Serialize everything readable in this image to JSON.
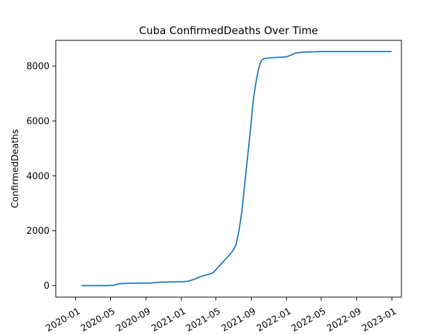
{
  "chart_data": {
    "type": "line",
    "title": "Cuba  ConfirmedDeaths Over Time",
    "xlabel": "",
    "ylabel": "ConfirmedDeaths",
    "x_ticks": [
      "2020-01",
      "2020-05",
      "2020-09",
      "2021-01",
      "2021-05",
      "2021-09",
      "2022-01",
      "2022-05",
      "2022-09",
      "2023-01"
    ],
    "y_ticks": [
      0,
      2000,
      4000,
      6000,
      8000
    ],
    "xlim": [
      "2019-10-24",
      "2023-02-03"
    ],
    "ylim": [
      -420,
      8940
    ],
    "grid": false,
    "color": "#1f77b4",
    "series": [
      {
        "x": [
          "2020-01-22",
          "2020-03-11",
          "2020-04-01",
          "2020-04-20",
          "2020-05-10",
          "2020-06-01",
          "2020-07-01",
          "2020-08-01",
          "2020-09-01",
          "2020-09-20",
          "2020-10-15",
          "2020-11-15",
          "2020-12-15",
          "2021-01-10",
          "2021-01-25",
          "2021-02-15",
          "2021-03-10",
          "2021-04-05",
          "2021-04-20",
          "2021-05-05",
          "2021-05-20",
          "2021-06-05",
          "2021-06-20",
          "2021-07-01",
          "2021-07-10",
          "2021-07-20",
          "2021-07-30",
          "2021-08-10",
          "2021-08-20",
          "2021-08-30",
          "2021-09-07",
          "2021-09-15",
          "2021-09-24",
          "2021-10-01",
          "2021-10-08",
          "2021-10-15",
          "2021-10-25",
          "2021-11-10",
          "2021-12-01",
          "2021-12-20",
          "2022-01-01",
          "2022-01-15",
          "2022-02-01",
          "2022-03-01",
          "2022-05-01",
          "2022-07-01",
          "2022-09-01",
          "2022-11-01",
          "2022-12-31"
        ],
        "y": [
          0,
          0,
          0,
          0,
          10,
          70,
          85,
          88,
          90,
          95,
          120,
          132,
          138,
          145,
          160,
          230,
          330,
          410,
          460,
          620,
          800,
          980,
          1150,
          1300,
          1500,
          2000,
          2700,
          3800,
          4800,
          5800,
          6700,
          7300,
          7800,
          8100,
          8230,
          8270,
          8290,
          8310,
          8320,
          8330,
          8340,
          8400,
          8480,
          8510,
          8530,
          8530,
          8530,
          8530,
          8530
        ]
      }
    ]
  }
}
